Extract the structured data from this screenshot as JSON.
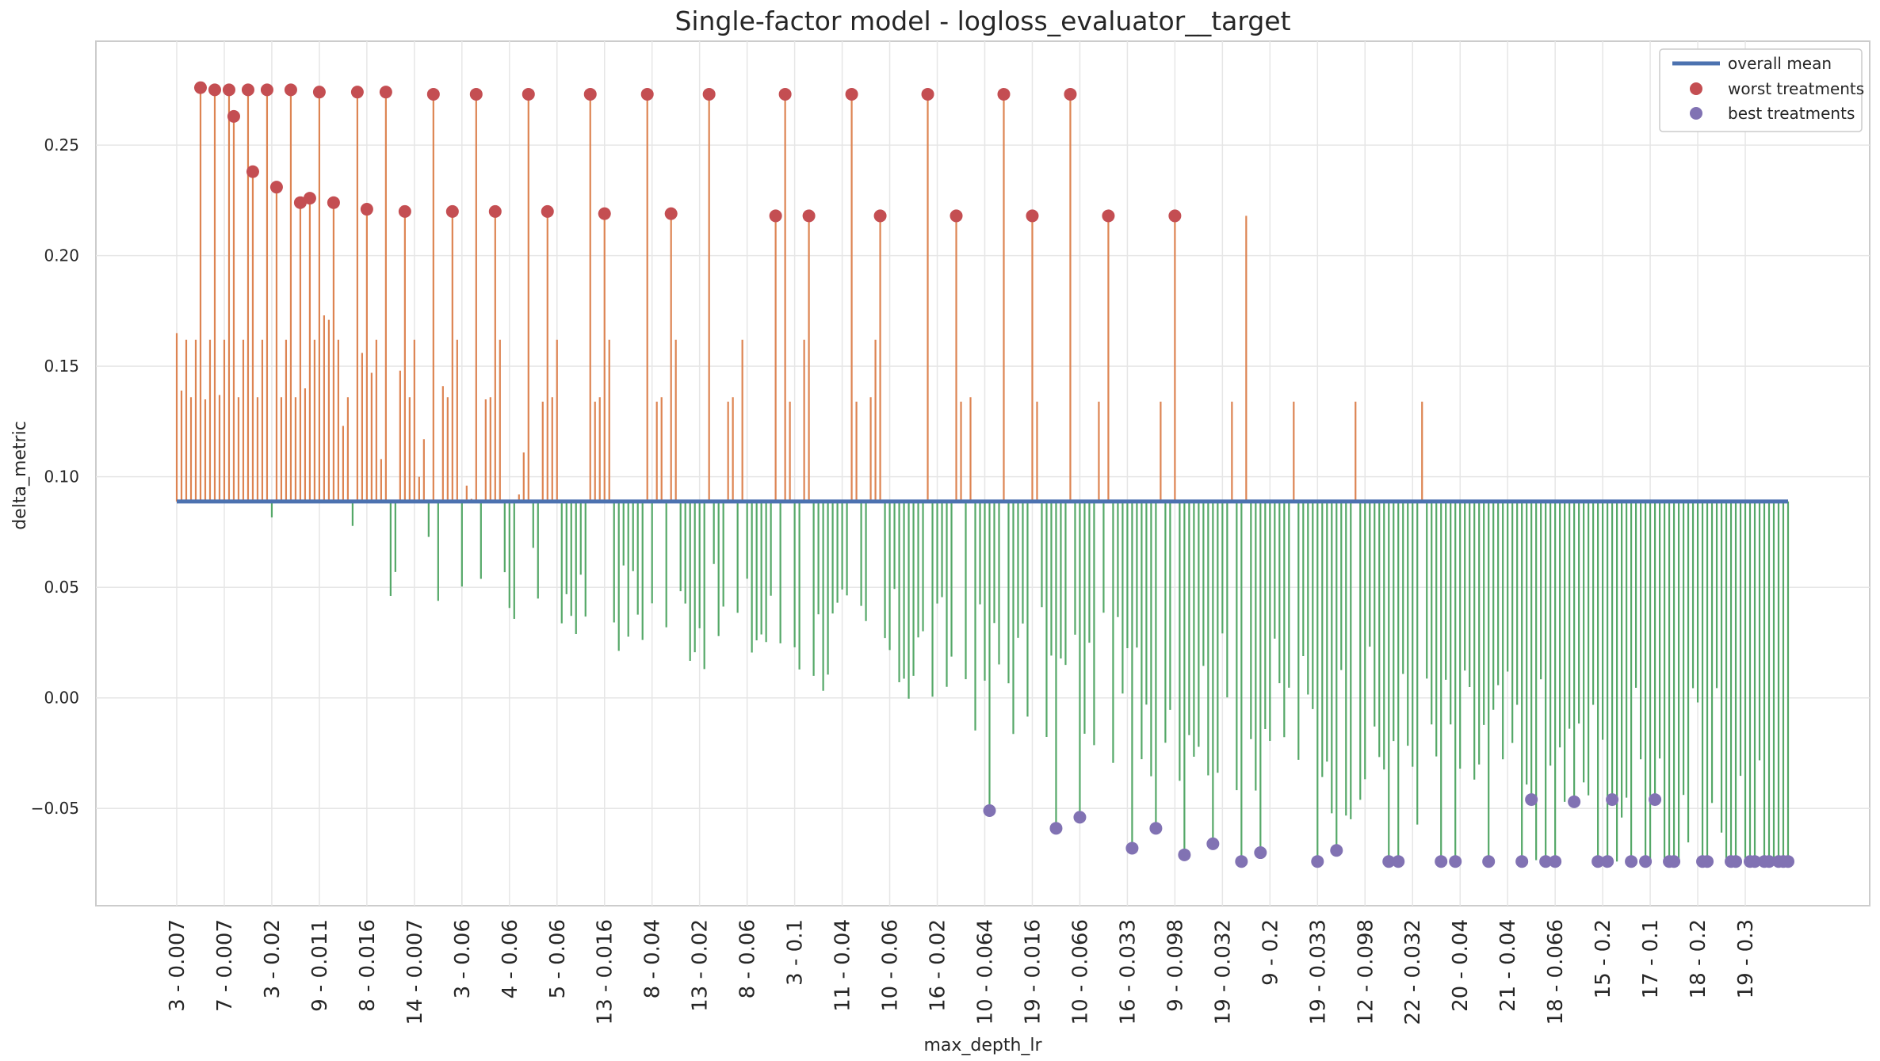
{
  "chart_data": {
    "type": "stem",
    "title": "Single-factor model - logloss_evaluator__target",
    "xlabel": "max_depth_lr",
    "ylabel": "delta_metric",
    "ylim": [
      -0.094,
      0.297
    ],
    "y_ticks": [
      -0.05,
      0.0,
      0.05,
      0.1,
      0.15,
      0.2,
      0.25
    ],
    "y_tick_labels": [
      "−0.05",
      "0.00",
      "0.05",
      "0.10",
      "0.15",
      "0.20",
      "0.25"
    ],
    "x_tick_labels": [
      "3 - 0.007",
      "7 - 0.007",
      "3 - 0.02",
      "9 - 0.011",
      "8 - 0.016",
      "14 - 0.007",
      "3 - 0.06",
      "4 - 0.06",
      "5 - 0.06",
      "13 - 0.016",
      "8 - 0.04",
      "13 - 0.02",
      "8 - 0.06",
      "3 - 0.1",
      "11 - 0.04",
      "10 - 0.06",
      "16 - 0.02",
      "10 - 0.064",
      "19 - 0.016",
      "10 - 0.066",
      "16 - 0.033",
      "9 - 0.098",
      "19 - 0.032",
      "9 - 0.2",
      "19 - 0.033",
      "12 - 0.098",
      "22 - 0.032",
      "20 - 0.04",
      "21 - 0.04",
      "18 - 0.066",
      "15 - 0.2",
      "17 - 0.1",
      "18 - 0.2",
      "19 - 0.3"
    ],
    "treatment_count": 340,
    "x_tick_every": 10,
    "overall_mean": 0.0888,
    "grid": true,
    "legend_position": "top-right",
    "legend": [
      {
        "label": "overall mean",
        "kind": "line",
        "color": "#4c72b0"
      },
      {
        "label": "worst treatments",
        "kind": "marker",
        "color": "#c44e52"
      },
      {
        "label": "best treatments",
        "kind": "marker",
        "color": "#8172b3"
      }
    ],
    "colors": {
      "above_mean": "#dd8452",
      "below_mean": "#55a868",
      "mean_line": "#4c72b0",
      "worst_marker": "#c44e52",
      "best_marker": "#8172b3",
      "grid": "#e6e6e6",
      "frame": "#cccccc"
    },
    "worst_treatments": [
      {
        "i": 5,
        "value": 0.276
      },
      {
        "i": 8,
        "value": 0.275
      },
      {
        "i": 11,
        "value": 0.275
      },
      {
        "i": 12,
        "value": 0.263
      },
      {
        "i": 15,
        "value": 0.275
      },
      {
        "i": 16,
        "value": 0.238
      },
      {
        "i": 19,
        "value": 0.275
      },
      {
        "i": 21,
        "value": 0.231
      },
      {
        "i": 24,
        "value": 0.275
      },
      {
        "i": 26,
        "value": 0.224
      },
      {
        "i": 28,
        "value": 0.226
      },
      {
        "i": 30,
        "value": 0.274
      },
      {
        "i": 33,
        "value": 0.224
      },
      {
        "i": 38,
        "value": 0.274
      },
      {
        "i": 40,
        "value": 0.221
      },
      {
        "i": 44,
        "value": 0.274
      },
      {
        "i": 48,
        "value": 0.22
      },
      {
        "i": 54,
        "value": 0.273
      },
      {
        "i": 58,
        "value": 0.22
      },
      {
        "i": 63,
        "value": 0.273
      },
      {
        "i": 67,
        "value": 0.22
      },
      {
        "i": 74,
        "value": 0.273
      },
      {
        "i": 78,
        "value": 0.22
      },
      {
        "i": 87,
        "value": 0.273
      },
      {
        "i": 90,
        "value": 0.219
      },
      {
        "i": 99,
        "value": 0.273
      },
      {
        "i": 104,
        "value": 0.219
      },
      {
        "i": 112,
        "value": 0.273
      },
      {
        "i": 126,
        "value": 0.218
      },
      {
        "i": 128,
        "value": 0.273
      },
      {
        "i": 133,
        "value": 0.218
      },
      {
        "i": 142,
        "value": 0.273
      },
      {
        "i": 148,
        "value": 0.218
      },
      {
        "i": 158,
        "value": 0.273
      },
      {
        "i": 164,
        "value": 0.218
      },
      {
        "i": 174,
        "value": 0.273
      },
      {
        "i": 180,
        "value": 0.218
      },
      {
        "i": 188,
        "value": 0.273
      },
      {
        "i": 196,
        "value": 0.218
      },
      {
        "i": 210,
        "value": 0.218
      }
    ],
    "best_treatments": [
      {
        "i": 171,
        "value": -0.051
      },
      {
        "i": 185,
        "value": -0.059
      },
      {
        "i": 190,
        "value": -0.054
      },
      {
        "i": 201,
        "value": -0.068
      },
      {
        "i": 206,
        "value": -0.059
      },
      {
        "i": 212,
        "value": -0.071
      },
      {
        "i": 218,
        "value": -0.066
      },
      {
        "i": 224,
        "value": -0.074
      },
      {
        "i": 228,
        "value": -0.07
      },
      {
        "i": 240,
        "value": -0.074
      },
      {
        "i": 244,
        "value": -0.069
      },
      {
        "i": 255,
        "value": -0.074
      },
      {
        "i": 257,
        "value": -0.074
      },
      {
        "i": 266,
        "value": -0.074
      },
      {
        "i": 269,
        "value": -0.074
      },
      {
        "i": 276,
        "value": -0.074
      },
      {
        "i": 283,
        "value": -0.074
      },
      {
        "i": 285,
        "value": -0.046
      },
      {
        "i": 288,
        "value": -0.074
      },
      {
        "i": 290,
        "value": -0.074
      },
      {
        "i": 294,
        "value": -0.047
      },
      {
        "i": 299,
        "value": -0.074
      },
      {
        "i": 301,
        "value": -0.074
      },
      {
        "i": 302,
        "value": -0.046
      },
      {
        "i": 306,
        "value": -0.074
      },
      {
        "i": 309,
        "value": -0.074
      },
      {
        "i": 311,
        "value": -0.046
      },
      {
        "i": 314,
        "value": -0.074
      },
      {
        "i": 315,
        "value": -0.074
      },
      {
        "i": 321,
        "value": -0.074
      },
      {
        "i": 322,
        "value": -0.074
      },
      {
        "i": 327,
        "value": -0.074
      },
      {
        "i": 328,
        "value": -0.074
      },
      {
        "i": 331,
        "value": -0.074
      },
      {
        "i": 332,
        "value": -0.074
      },
      {
        "i": 334,
        "value": -0.074
      },
      {
        "i": 335,
        "value": -0.074
      },
      {
        "i": 337,
        "value": -0.074
      },
      {
        "i": 338,
        "value": -0.074
      },
      {
        "i": 339,
        "value": -0.074
      }
    ],
    "upper_stems": [
      {
        "i": 0,
        "value": 0.165
      },
      {
        "i": 1,
        "value": 0.139
      },
      {
        "i": 2,
        "value": 0.162
      },
      {
        "i": 3,
        "value": 0.136
      },
      {
        "i": 4,
        "value": 0.162
      },
      {
        "i": 6,
        "value": 0.135
      },
      {
        "i": 7,
        "value": 0.162
      },
      {
        "i": 9,
        "value": 0.137
      },
      {
        "i": 10,
        "value": 0.162
      },
      {
        "i": 13,
        "value": 0.136
      },
      {
        "i": 14,
        "value": 0.162
      },
      {
        "i": 17,
        "value": 0.136
      },
      {
        "i": 18,
        "value": 0.162
      },
      {
        "i": 22,
        "value": 0.136
      },
      {
        "i": 23,
        "value": 0.162
      },
      {
        "i": 25,
        "value": 0.136
      },
      {
        "i": 27,
        "value": 0.14
      },
      {
        "i": 29,
        "value": 0.162
      },
      {
        "i": 31,
        "value": 0.173
      },
      {
        "i": 32,
        "value": 0.171
      },
      {
        "i": 34,
        "value": 0.162
      },
      {
        "i": 35,
        "value": 0.123
      },
      {
        "i": 36,
        "value": 0.136
      },
      {
        "i": 39,
        "value": 0.156
      },
      {
        "i": 41,
        "value": 0.147
      },
      {
        "i": 42,
        "value": 0.162
      },
      {
        "i": 43,
        "value": 0.108
      },
      {
        "i": 47,
        "value": 0.148
      },
      {
        "i": 49,
        "value": 0.136
      },
      {
        "i": 50,
        "value": 0.162
      },
      {
        "i": 51,
        "value": 0.1
      },
      {
        "i": 52,
        "value": 0.117
      },
      {
        "i": 56,
        "value": 0.141
      },
      {
        "i": 57,
        "value": 0.136
      },
      {
        "i": 59,
        "value": 0.162
      },
      {
        "i": 61,
        "value": 0.096
      },
      {
        "i": 62,
        "value": 0.09
      },
      {
        "i": 65,
        "value": 0.135
      },
      {
        "i": 66,
        "value": 0.136
      },
      {
        "i": 68,
        "value": 0.162
      },
      {
        "i": 72,
        "value": 0.092
      },
      {
        "i": 73,
        "value": 0.111
      },
      {
        "i": 77,
        "value": 0.134
      },
      {
        "i": 79,
        "value": 0.136
      },
      {
        "i": 80,
        "value": 0.162
      },
      {
        "i": 88,
        "value": 0.134
      },
      {
        "i": 89,
        "value": 0.136
      },
      {
        "i": 91,
        "value": 0.162
      },
      {
        "i": 101,
        "value": 0.134
      },
      {
        "i": 102,
        "value": 0.136
      },
      {
        "i": 105,
        "value": 0.162
      },
      {
        "i": 116,
        "value": 0.134
      },
      {
        "i": 117,
        "value": 0.136
      },
      {
        "i": 119,
        "value": 0.162
      },
      {
        "i": 129,
        "value": 0.134
      },
      {
        "i": 132,
        "value": 0.162
      },
      {
        "i": 143,
        "value": 0.134
      },
      {
        "i": 146,
        "value": 0.136
      },
      {
        "i": 147,
        "value": 0.162
      },
      {
        "i": 165,
        "value": 0.134
      },
      {
        "i": 167,
        "value": 0.136
      },
      {
        "i": 181,
        "value": 0.134
      },
      {
        "i": 194,
        "value": 0.134
      },
      {
        "i": 207,
        "value": 0.134
      },
      {
        "i": 222,
        "value": 0.134
      },
      {
        "i": 225,
        "value": 0.218
      },
      {
        "i": 235,
        "value": 0.134
      },
      {
        "i": 248,
        "value": 0.134
      },
      {
        "i": 262,
        "value": 0.134
      }
    ]
  }
}
